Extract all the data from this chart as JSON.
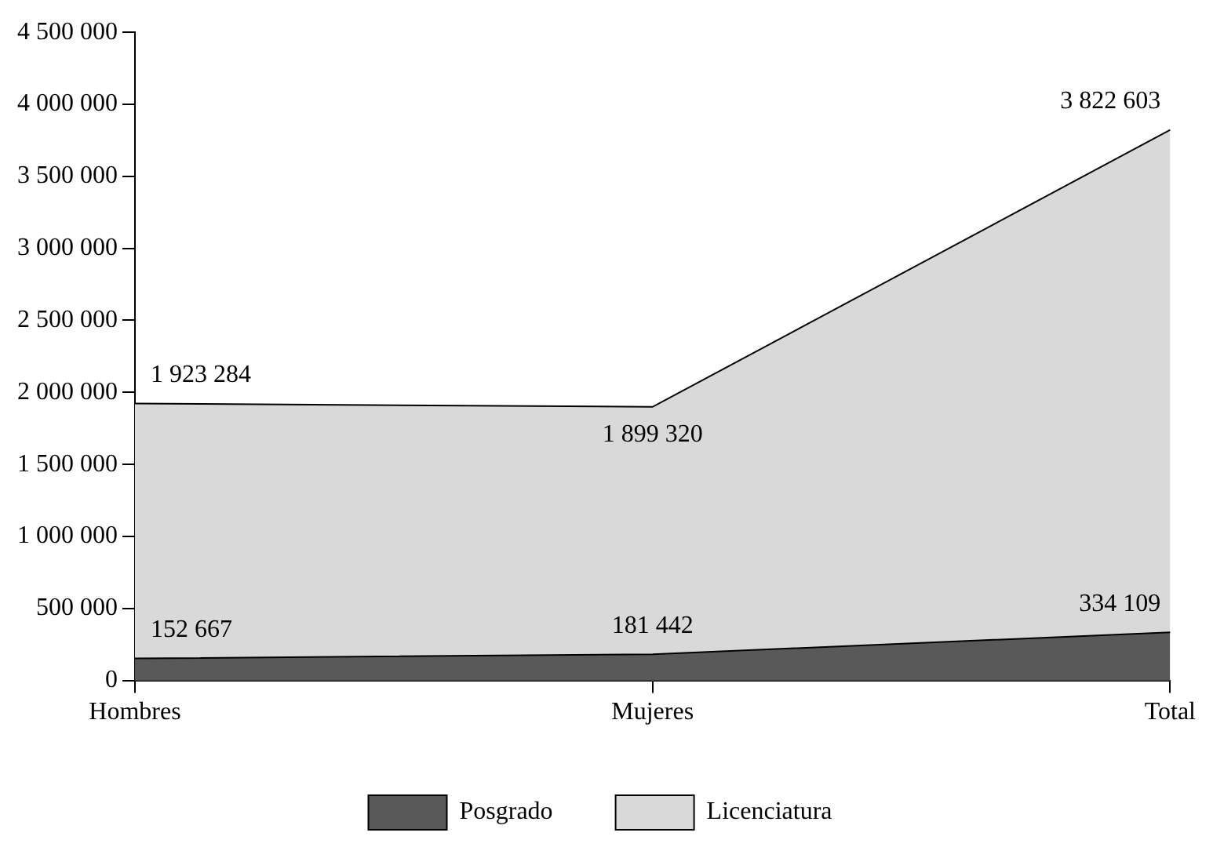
{
  "chart_data": {
    "type": "area",
    "categories": [
      "Hombres",
      "Mujeres",
      "Total"
    ],
    "series": [
      {
        "name": "Licenciatura",
        "color": "#d9d9d9",
        "values": [
          1923284,
          1899320,
          3822603
        ],
        "value_labels": [
          "1 923 284",
          "1 899 320",
          "3 822 603"
        ]
      },
      {
        "name": "Posgrado",
        "color": "#595959",
        "values": [
          152667,
          181442,
          334109
        ],
        "value_labels": [
          "152 667",
          "181 442",
          "334 109"
        ]
      }
    ],
    "ylim": [
      0,
      4500000
    ],
    "yticks": [
      {
        "value": 0,
        "label": "0"
      },
      {
        "value": 500000,
        "label": "500 000"
      },
      {
        "value": 1000000,
        "label": "1 000 000"
      },
      {
        "value": 1500000,
        "label": "1 500 000"
      },
      {
        "value": 2000000,
        "label": "2 000 000"
      },
      {
        "value": 2500000,
        "label": "2 500 000"
      },
      {
        "value": 3000000,
        "label": "3 000 000"
      },
      {
        "value": 3500000,
        "label": "3 500 000"
      },
      {
        "value": 4000000,
        "label": "4 000 000"
      },
      {
        "value": 4500000,
        "label": "4 500 000"
      }
    ],
    "grid": false,
    "legend": "bottom"
  }
}
